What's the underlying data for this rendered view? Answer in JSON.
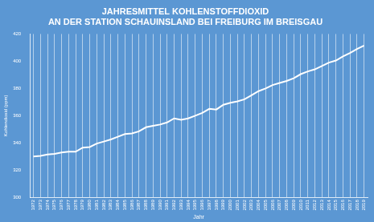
{
  "chart_data": {
    "type": "line",
    "title": "JAHRESMITTEL KOHLENSTOFFDIOXID",
    "subtitle": "AN DER STATION SCHAUINSLAND BEI FREIBURG IM BREISGAU",
    "x_label": "Jahr",
    "y_label": "Kohlendioxid (ppm)",
    "categories": [
      "1972",
      "1973",
      "1974",
      "1975",
      "1976",
      "1977",
      "1978",
      "1979",
      "1980",
      "1981",
      "1982",
      "1983",
      "1984",
      "1985",
      "1986",
      "1987",
      "1988",
      "1989",
      "1990",
      "1991",
      "1992",
      "1993",
      "1994",
      "1995",
      "1996",
      "1997",
      "1998",
      "1999",
      "2000",
      "2001",
      "2002",
      "2003",
      "2004",
      "2005",
      "2006",
      "2007",
      "2008",
      "2009",
      "2010",
      "2011",
      "2012",
      "2013",
      "2014",
      "2015",
      "2016",
      "2017",
      "2018",
      "2019"
    ],
    "values": [
      330,
      330.5,
      331.5,
      332,
      333,
      333.5,
      333.5,
      336.5,
      337,
      339.5,
      341,
      342.5,
      344.5,
      346.5,
      347,
      348.5,
      351.5,
      352.5,
      353.5,
      355,
      358,
      357,
      358,
      360,
      362,
      365,
      364.5,
      368,
      369.5,
      370.5,
      372,
      375,
      378,
      380,
      382.5,
      384,
      385.5,
      387.5,
      390.5,
      392.5,
      394,
      396.5,
      399,
      400.5,
      403.5,
      406,
      409,
      411.5
    ],
    "color": "#ffffff",
    "ylim": [
      300,
      420
    ],
    "yticks": [
      300,
      320,
      340,
      360,
      380,
      400,
      420
    ],
    "grid": true
  }
}
